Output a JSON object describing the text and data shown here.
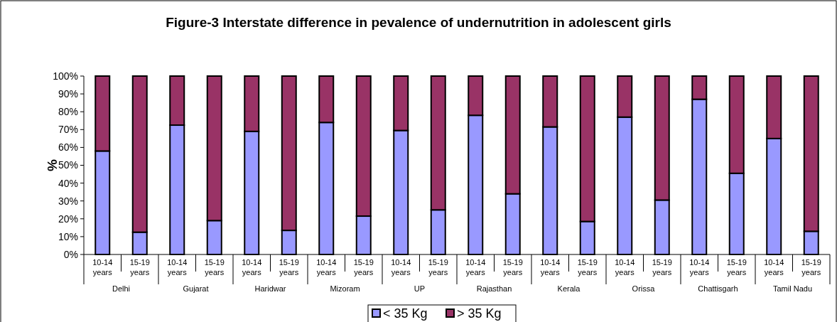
{
  "chart_data": {
    "type": "bar",
    "title": "Figure-3 Interstate difference in pevalence of undernutrition in adolescent girls",
    "ylabel": "%",
    "categories": [
      "10-14 years",
      "15-19 years",
      "10-14 years",
      "15-19 years",
      "10-14 years",
      "15-19 years",
      "10-14 years",
      "15-19 years",
      "10-14 years",
      "15-19 years",
      "10-14 years",
      "15-19 years",
      "10-14 years",
      "15-19 years",
      "10-14 years",
      "15-19 years",
      "10-14 years",
      "15-19 years",
      "10-14 years",
      "15-19 years"
    ],
    "annotations": [
      "Delhi",
      "Gujarat",
      "Haridwar",
      "Mizoram",
      "UP",
      "Rajasthan",
      "Kerala",
      "Orissa",
      "Chattisgarh",
      "Tamil Nadu"
    ],
    "stacked": true,
    "series": [
      {
        "name": "< 35 Kg",
        "color": "#9999ff",
        "values": [
          58,
          12.5,
          72.5,
          19,
          69,
          13.5,
          74,
          21.5,
          69.5,
          25,
          78,
          34,
          71.5,
          18.5,
          77,
          30.5,
          87,
          45.5,
          65,
          13
        ]
      },
      {
        "name": "> 35 Kg",
        "color": "#993366",
        "values": [
          42,
          87.5,
          27.5,
          81,
          31,
          86.5,
          26,
          78.5,
          30.5,
          75,
          22,
          66,
          28.5,
          81.5,
          23,
          69.5,
          13,
          54.5,
          35,
          87
        ]
      }
    ],
    "ylim": [
      0,
      100
    ],
    "yticks": [
      {
        "value": 0,
        "label": "0%"
      },
      {
        "value": 10,
        "label": "10%"
      },
      {
        "value": 20,
        "label": "20%"
      },
      {
        "value": 30,
        "label": "30%"
      },
      {
        "value": 40,
        "label": "40%"
      },
      {
        "value": 50,
        "label": "50%"
      },
      {
        "value": 60,
        "label": "60%"
      },
      {
        "value": 70,
        "label": "70%"
      },
      {
        "value": 80,
        "label": "80%"
      },
      {
        "value": 90,
        "label": "90%"
      },
      {
        "value": 100,
        "label": "100%"
      }
    ],
    "legend": "bottom"
  }
}
